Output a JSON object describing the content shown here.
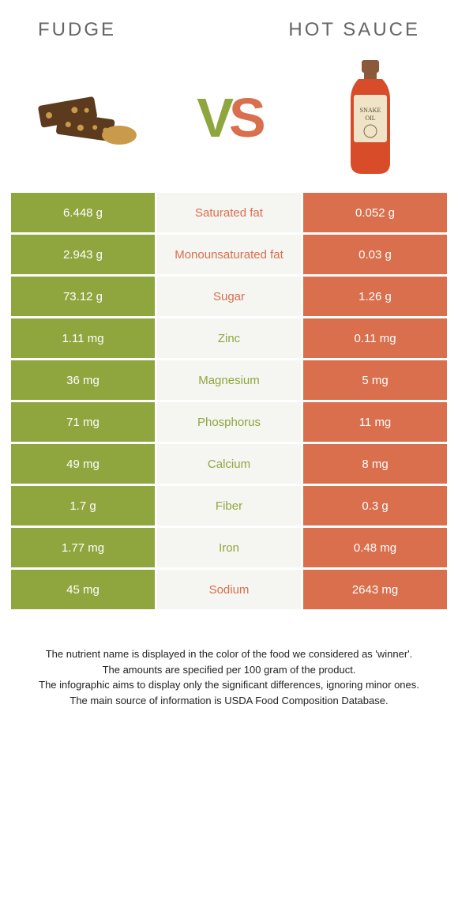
{
  "titles": {
    "left": "Fudge",
    "right": "Hot sauce"
  },
  "vs": {
    "v": "V",
    "s": "S"
  },
  "colors": {
    "left_bg": "#8fa63f",
    "right_bg": "#d96f4c",
    "center_left_text": "#d96f4c",
    "center_right_text": "#8fa63f"
  },
  "rows": [
    {
      "left": "6.448 g",
      "label": "Saturated fat",
      "right": "0.052 g",
      "winner": "left"
    },
    {
      "left": "2.943 g",
      "label": "Monounsaturated fat",
      "right": "0.03 g",
      "winner": "left"
    },
    {
      "left": "73.12 g",
      "label": "Sugar",
      "right": "1.26 g",
      "winner": "left"
    },
    {
      "left": "1.11 mg",
      "label": "Zinc",
      "right": "0.11 mg",
      "winner": "right"
    },
    {
      "left": "36 mg",
      "label": "Magnesium",
      "right": "5 mg",
      "winner": "right"
    },
    {
      "left": "71 mg",
      "label": "Phosphorus",
      "right": "11 mg",
      "winner": "right"
    },
    {
      "left": "49 mg",
      "label": "Calcium",
      "right": "8 mg",
      "winner": "right"
    },
    {
      "left": "1.7 g",
      "label": "Fiber",
      "right": "0.3 g",
      "winner": "right"
    },
    {
      "left": "1.77 mg",
      "label": "Iron",
      "right": "0.48 mg",
      "winner": "right"
    },
    {
      "left": "45 mg",
      "label": "Sodium",
      "right": "2643 mg",
      "winner": "left"
    }
  ],
  "footer": {
    "line1": "The nutrient name is displayed in the color of the food we considered as 'winner'.",
    "line2": "The amounts are specified per 100 gram of the product.",
    "line3": "The infographic aims to display only the significant differences, ignoring minor ones.",
    "line4": "The main source of information is USDA Food Composition Database."
  }
}
